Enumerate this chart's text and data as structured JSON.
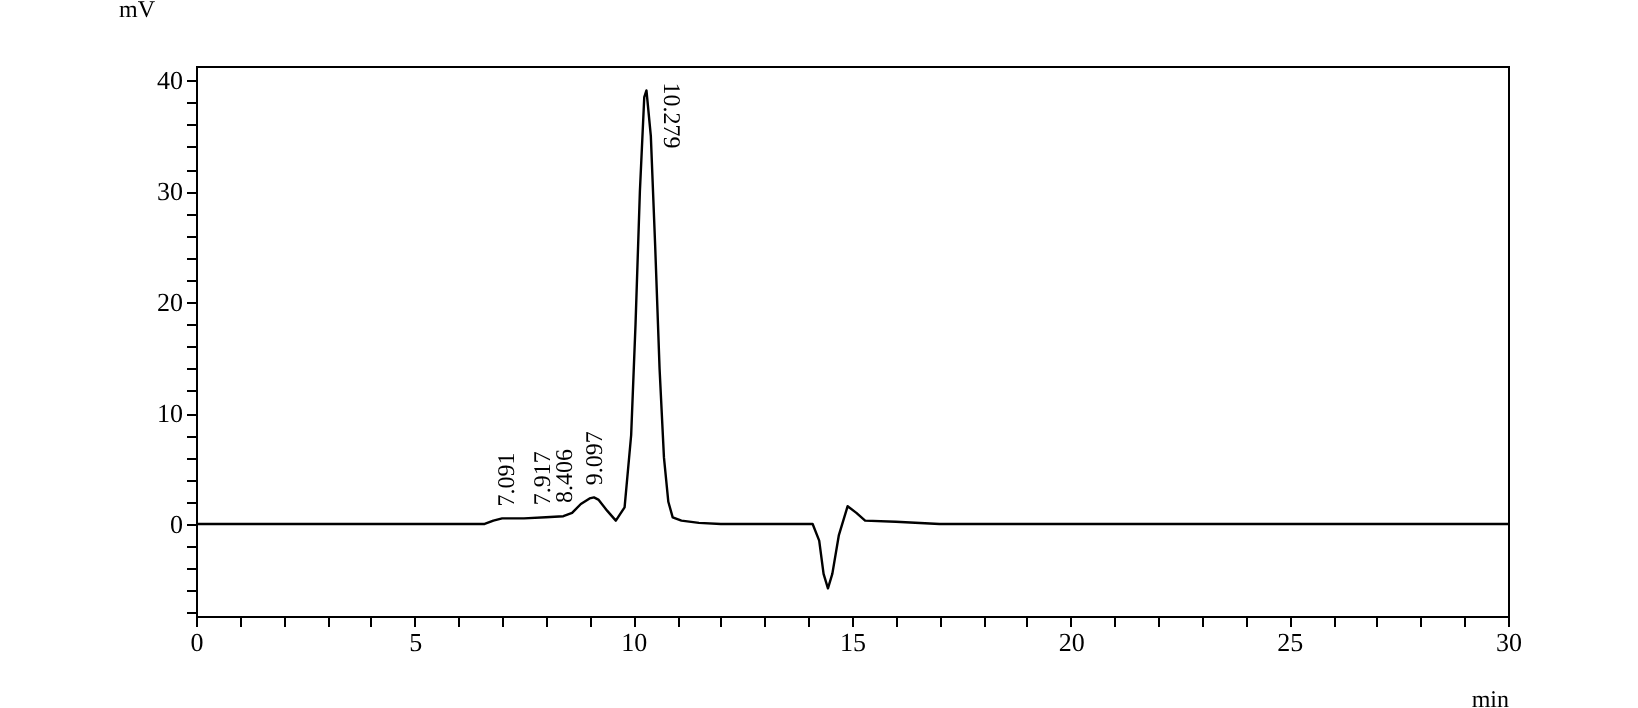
{
  "chart_data": {
    "type": "line",
    "xlabel": "min",
    "ylabel": "mV",
    "x": [
      0,
      2,
      4,
      6,
      6.6,
      6.8,
      7.0,
      7.5,
      8.0,
      8.4,
      8.6,
      8.8,
      9.0,
      9.1,
      9.2,
      9.4,
      9.6,
      9.8,
      9.95,
      10.05,
      10.15,
      10.25,
      10.3,
      10.4,
      10.5,
      10.6,
      10.7,
      10.8,
      10.9,
      11.1,
      11.5,
      12,
      13,
      14,
      14.1,
      14.25,
      14.35,
      14.45,
      14.55,
      14.7,
      14.9,
      15.1,
      15.3,
      16,
      17,
      18,
      20,
      22,
      25,
      28,
      30
    ],
    "series": [
      {
        "color": "#000000",
        "values": [
          0,
          0,
          0,
          0,
          0,
          0.3,
          0.5,
          0.5,
          0.6,
          0.7,
          1.0,
          1.8,
          2.3,
          2.4,
          2.2,
          1.2,
          0.3,
          1.5,
          8,
          18,
          30,
          38.5,
          39.1,
          35,
          25,
          14,
          6,
          2,
          0.6,
          0.3,
          0.1,
          0,
          0,
          0,
          0,
          -1.5,
          -4.5,
          -5.8,
          -4.5,
          -1.0,
          1.6,
          1.0,
          0.3,
          0.2,
          0,
          0,
          0,
          0,
          0,
          0,
          0
        ]
      }
    ],
    "xlim": [
      0,
      30
    ],
    "ylim": [
      -8.3,
      41.3
    ],
    "xticks": [
      0,
      {
        "value": 1,
        "label": null
      },
      {
        "value": 2,
        "label": null
      },
      {
        "value": 3,
        "label": null
      },
      {
        "value": 4,
        "label": null
      },
      5,
      {
        "value": 6,
        "label": null
      },
      {
        "value": 7,
        "label": null
      },
      {
        "value": 8,
        "label": null
      },
      {
        "value": 9,
        "label": null
      },
      10,
      {
        "value": 11,
        "label": null
      },
      {
        "value": 12,
        "label": null
      },
      {
        "value": 13,
        "label": null
      },
      {
        "value": 14,
        "label": null
      },
      15,
      {
        "value": 16,
        "label": null
      },
      {
        "value": 17,
        "label": null
      },
      {
        "value": 18,
        "label": null
      },
      {
        "value": 19,
        "label": null
      },
      20,
      {
        "value": 21,
        "label": null
      },
      {
        "value": 22,
        "label": null
      },
      {
        "value": 23,
        "label": null
      },
      {
        "value": 24,
        "label": null
      },
      25,
      {
        "value": 26,
        "label": null
      },
      {
        "value": 27,
        "label": null
      },
      {
        "value": 28,
        "label": null
      },
      {
        "value": 29,
        "label": null
      },
      30
    ],
    "yticks": [
      {
        "value": -8,
        "label": null
      },
      {
        "value": -6,
        "label": null
      },
      {
        "value": -4,
        "label": null
      },
      {
        "value": -2,
        "label": null
      },
      0,
      {
        "value": 2,
        "label": null
      },
      {
        "value": 4,
        "label": null
      },
      {
        "value": 6,
        "label": null
      },
      {
        "value": 8,
        "label": null
      },
      10,
      {
        "value": 12,
        "label": null
      },
      {
        "value": 14,
        "label": null
      },
      {
        "value": 16,
        "label": null
      },
      {
        "value": 18,
        "label": null
      },
      20,
      {
        "value": 22,
        "label": null
      },
      {
        "value": 24,
        "label": null
      },
      {
        "value": 26,
        "label": null
      },
      {
        "value": 28,
        "label": null
      },
      30,
      {
        "value": 32,
        "label": null
      },
      {
        "value": 34,
        "label": null
      },
      {
        "value": 36,
        "label": null
      },
      {
        "value": 38,
        "label": null
      },
      40
    ],
    "annotations": [
      {
        "text": "7.091",
        "x": 7.091,
        "y": 0.5
      },
      {
        "text": "7.917",
        "x": 7.917,
        "y": 0.6
      },
      {
        "text": "8.406",
        "x": 8.406,
        "y": 0.8
      },
      {
        "text": "9.097",
        "x": 9.097,
        "y": 2.4
      },
      {
        "text": "10.279",
        "x": 10.279,
        "y": 39.1
      }
    ],
    "grid": false,
    "marker": "none",
    "line_style": "solid"
  }
}
